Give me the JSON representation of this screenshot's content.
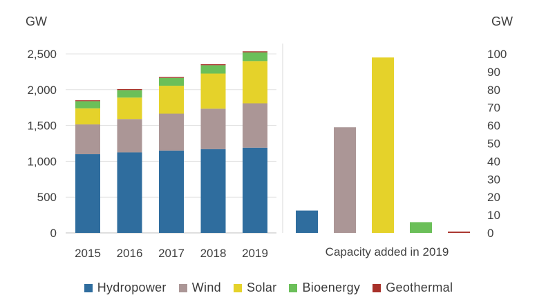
{
  "chart_data": [
    {
      "type": "bar",
      "stacked": true,
      "ylabel": "GW",
      "ylim": [
        0,
        2500
      ],
      "yticks": [
        "0",
        "500",
        "1,000",
        "1,500",
        "2,000",
        "2,500"
      ],
      "ytick_values": [
        0,
        500,
        1000,
        1500,
        2000,
        2500
      ],
      "grid": true,
      "categories": [
        "2015",
        "2016",
        "2017",
        "2018",
        "2019"
      ],
      "series": [
        {
          "name": "Hydropower",
          "values": [
            1100,
            1125,
            1150,
            1170,
            1190
          ]
        },
        {
          "name": "Wind",
          "values": [
            415,
            465,
            515,
            565,
            620
          ]
        },
        {
          "name": "Solar",
          "values": [
            225,
            300,
            390,
            490,
            590
          ]
        },
        {
          "name": "Bioenergy",
          "values": [
            100,
            105,
            110,
            117,
            122
          ]
        },
        {
          "name": "Geothermal",
          "values": [
            12,
            13,
            13,
            14,
            14
          ]
        }
      ]
    },
    {
      "type": "bar",
      "ylabel": "GW",
      "xlabel": "Capacity added in 2019",
      "ylim": [
        0,
        100
      ],
      "yticks": [
        "0",
        "10",
        "20",
        "30",
        "40",
        "50",
        "60",
        "70",
        "80",
        "90",
        "100"
      ],
      "ytick_values": [
        0,
        10,
        20,
        30,
        40,
        50,
        60,
        70,
        80,
        90,
        100
      ],
      "categories": [
        "Hydropower",
        "Wind",
        "Solar",
        "Bioenergy",
        "Geothermal"
      ],
      "values": [
        12.5,
        59,
        98,
        6,
        0.7
      ]
    }
  ],
  "legend": [
    {
      "name": "Hydropower",
      "color": "#2f6d9e"
    },
    {
      "name": "Wind",
      "color": "#ab9696"
    },
    {
      "name": "Solar",
      "color": "#e5d22a"
    },
    {
      "name": "Bioenergy",
      "color": "#6bbf59"
    },
    {
      "name": "Geothermal",
      "color": "#a8312a"
    }
  ]
}
